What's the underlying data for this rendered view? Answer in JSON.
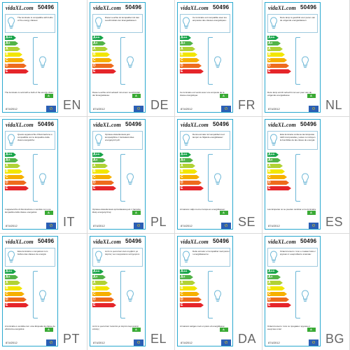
{
  "labels": [
    {
      "code": "50496",
      "lang": "EN",
      "top": "The luminaire is compatible with bulbs of the energy classes:",
      "bottom": "The luminaire is sold with a bulb of the energy class:",
      "date": "874/2012"
    },
    {
      "code": "50496",
      "lang": "DE",
      "top": "Diese Leuchte ist kompatibel mit den Leuchtmitteln der Energieklassen:",
      "bottom": "Diese Leuchte wird verkauft mit einem Leuchtmittel der Energieklasse:",
      "date": "874/2012"
    },
    {
      "code": "50496",
      "lang": "FR",
      "top": "Ce luminaire est compatible avec les ampoules des classes énergétiques:",
      "bottom": "Ce luminaire est vendu avec une ampoule de la classe énergétique:",
      "date": "874/2012"
    },
    {
      "code": "50496",
      "lang": "NL",
      "top": "Deze lamp is geschikt voor peren van de volgende energieklassen:",
      "bottom": "Deze lamp wordt verkocht met een peer van de volgende energieklasse:",
      "date": "874/2012"
    },
    {
      "code": "50496",
      "lang": "IT",
      "top": "Questo apparecchio d'illuminazione è compatibile con le lampadine delle classi energetiche:",
      "bottom": "L'apparecchio di illuminazione è venduto con una lampadina della classe energetica:",
      "date": "874/2012"
    },
    {
      "code": "50496",
      "lang": "PL",
      "top": "Oprawa oświetleniowa jest kompatybilna z żarówkami klas energetycznych:",
      "bottom": "Oprawa oświetleniowa sprzedawana jest z żarówką klasy energetycznej:",
      "date": "874/2012"
    },
    {
      "code": "50496",
      "lang": "SE",
      "top": "Denna armatur är kompatibel med lampor av följande energiklasser:",
      "bottom": "Armaturen säljs med en lampa av energiklassen:",
      "date": "874/2012"
    },
    {
      "code": "50496",
      "lang": "ES",
      "top": "Esta luminaria contiene las lámparas LED incorporadas y estas no incluyen la bombillas de las clases de energía:",
      "bottom": "Las lámparas no se pueden cambiar en la luminaria.",
      "date": "874/2012"
    },
    {
      "code": "50496",
      "lang": "PT",
      "top": "Esta luminária é compatível com bulbos das classes de energia:",
      "bottom": "A luminária é vendida com uma lâmpada da classe de eficiência energética:",
      "date": "874/2012"
    },
    {
      "code": "50496",
      "lang": "EL",
      "top": "Αυτό το φωτιστικό είναι συμβατό με λάμπες των ενεργειακών κατηγοριών:",
      "bottom": "Αυτό το φωτιστικό πωλείται με λάμπα ενεργειακής κλάσης:",
      "date": "874/2012"
    },
    {
      "code": "50496",
      "lang": "DA",
      "top": "Dette armatur er kompatibel med pærer i energiklasserne:",
      "bottom": "Armaturet sælges med en pære af energiklasse:",
      "date": "874/2012"
    },
    {
      "code": "50496",
      "lang": "BG",
      "top": "Осветителното тяло е съвместимо с крушки от енергийните класове:",
      "bottom": "Осветителното тяло се продава с крушка от енергиен клас:",
      "date": "874/2012"
    }
  ],
  "scale": [
    {
      "class": "A++",
      "color": "#18a44a"
    },
    {
      "class": "A+",
      "color": "#52b348"
    },
    {
      "class": "A",
      "color": "#b1d235"
    },
    {
      "class": "B",
      "color": "#f2e600"
    },
    {
      "class": "C",
      "color": "#f6b000"
    },
    {
      "class": "D",
      "color": "#ee6b1d"
    },
    {
      "class": "E",
      "color": "#e5252a"
    }
  ],
  "bulb_class_badge": "A",
  "brand": "vidaXL.com"
}
